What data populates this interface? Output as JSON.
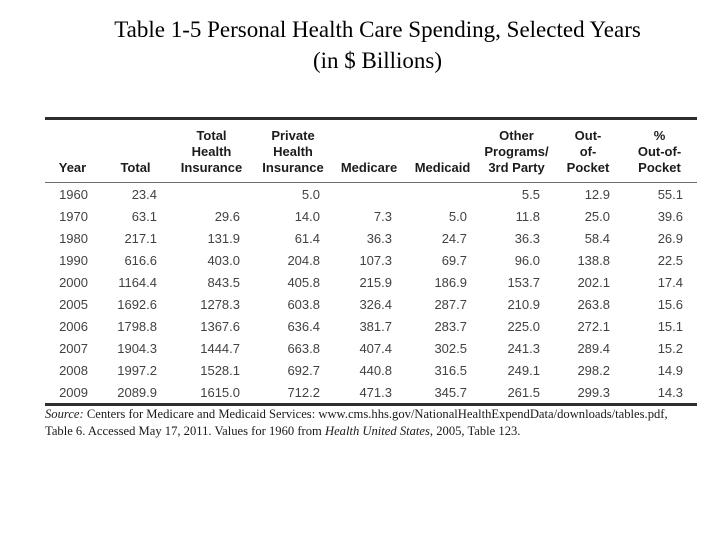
{
  "title": {
    "line1": "Table 1-5 Personal Health Care Spending, Selected Years",
    "line2": "(in $ Billions)"
  },
  "table": {
    "columns": [
      {
        "label": "Year"
      },
      {
        "label": "Total"
      },
      {
        "label": "Total\nHealth\nInsurance"
      },
      {
        "label": "Private\nHealth\nInsurance"
      },
      {
        "label": "Medicare"
      },
      {
        "label": "Medicaid"
      },
      {
        "label": "Other\nPrograms/\n3rd Party"
      },
      {
        "label": "Out-\nof-\nPocket"
      },
      {
        "label": "%\nOut-of-\nPocket"
      }
    ],
    "rows": [
      [
        "1960",
        "23.4",
        "",
        "5.0",
        "",
        "",
        "5.5",
        "12.9",
        "55.1"
      ],
      [
        "1970",
        "63.1",
        "29.6",
        "14.0",
        "7.3",
        "5.0",
        "11.8",
        "25.0",
        "39.6"
      ],
      [
        "1980",
        "217.1",
        "131.9",
        "61.4",
        "36.3",
        "24.7",
        "36.3",
        "58.4",
        "26.9"
      ],
      [
        "1990",
        "616.6",
        "403.0",
        "204.8",
        "107.3",
        "69.7",
        "96.0",
        "138.8",
        "22.5"
      ],
      [
        "2000",
        "1164.4",
        "843.5",
        "405.8",
        "215.9",
        "186.9",
        "153.7",
        "202.1",
        "17.4"
      ],
      [
        "2005",
        "1692.6",
        "1278.3",
        "603.8",
        "326.4",
        "287.7",
        "210.9",
        "263.8",
        "15.6"
      ],
      [
        "2006",
        "1798.8",
        "1367.6",
        "636.4",
        "381.7",
        "283.7",
        "225.0",
        "272.1",
        "15.1"
      ],
      [
        "2007",
        "1904.3",
        "1444.7",
        "663.8",
        "407.4",
        "302.5",
        "241.3",
        "289.4",
        "15.2"
      ],
      [
        "2008",
        "1997.2",
        "1528.1",
        "692.7",
        "440.8",
        "316.5",
        "249.1",
        "298.2",
        "14.9"
      ],
      [
        "2009",
        "2089.9",
        "1615.0",
        "712.2",
        "471.3",
        "345.7",
        "261.5",
        "299.3",
        "14.3"
      ]
    ]
  },
  "source": {
    "line1_label": "Source:",
    "line1_text": " Centers for Medicare and Medicaid Services: www.cms.hhs.gov/NationalHealthExpendData/downloads/tables.pdf,",
    "line2_text": "Table 6. Accessed May 17, 2011. Values for 1960 from ",
    "line2_italic": "Health United States",
    "line2_tail": ", 2005, Table 123."
  },
  "colors": {
    "rule_dark": "#2e2e2e",
    "rule_light": "#6e6e6e",
    "header_text": "#1c1c1c",
    "data_text": "#424242",
    "background": "#ffffff"
  }
}
